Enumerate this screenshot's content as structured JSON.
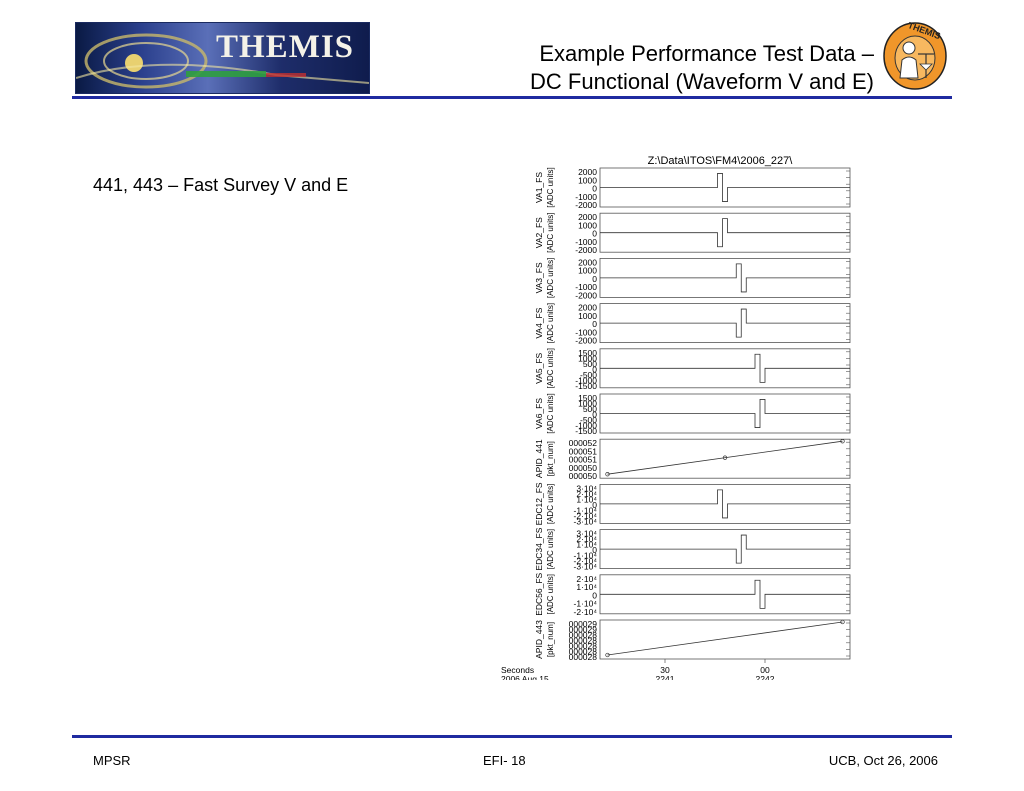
{
  "header": {
    "banner_text": "THEMIS",
    "title_line1": "Example Performance Test Data –",
    "title_line2": "DC Functional (Waveform V and E)",
    "logo_text": "THEMIS",
    "logo_icon": "themis-seal-icon"
  },
  "body": {
    "caption": "441, 443 – Fast Survey V and E"
  },
  "chart_data": {
    "type": "line",
    "title": "Z:\\Data\\ITOS\\FM4\\2006_227\\",
    "x_axis": {
      "label_line1": "Seconds",
      "label_line2": "2006 Aug 15",
      "ticks": [
        {
          "top": "30",
          "bottom": "2241"
        },
        {
          "top": "00",
          "bottom": "2242"
        }
      ]
    },
    "panels": [
      {
        "name": "VA1_FS",
        "unit": "[ADC units]",
        "ticks": [
          "2000",
          "1000",
          "0",
          "-1000",
          "-2000"
        ],
        "pulse_at": 0.47,
        "shape": "up-down"
      },
      {
        "name": "VA2_FS",
        "unit": "[ADC units]",
        "ticks": [
          "2000",
          "1000",
          "0",
          "-1000",
          "-2000"
        ],
        "pulse_at": 0.47,
        "shape": "down-up"
      },
      {
        "name": "VA3_FS",
        "unit": "[ADC units]",
        "ticks": [
          "2000",
          "1000",
          "0",
          "-1000",
          "-2000"
        ],
        "pulse_at": 0.545,
        "shape": "up-down"
      },
      {
        "name": "VA4_FS",
        "unit": "[ADC units]",
        "ticks": [
          "2000",
          "1000",
          "0",
          "-1000",
          "-2000"
        ],
        "pulse_at": 0.545,
        "shape": "down-up"
      },
      {
        "name": "VA5_FS",
        "unit": "[ADC units]",
        "ticks": [
          "1500",
          "1000",
          "500",
          "0",
          "-500",
          "-1000",
          "-1500"
        ],
        "pulse_at": 0.62,
        "shape": "up-down"
      },
      {
        "name": "VA6_FS",
        "unit": "[ADC units]",
        "ticks": [
          "1500",
          "1000",
          "500",
          "0",
          "-500",
          "-1000",
          "-1500"
        ],
        "pulse_at": 0.62,
        "shape": "down-up"
      },
      {
        "name": "APID_441",
        "unit": "[pkt_num]",
        "ticks": [
          "000052",
          "000051",
          "000051",
          "000050",
          "000050"
        ],
        "shape": "ramp",
        "points": [
          0.03,
          0.5,
          0.97
        ]
      },
      {
        "name": "EDC12_FS",
        "unit": "[ADC units]",
        "ticks": [
          "3·10⁴",
          "2·10⁴",
          "1·10⁴",
          "0",
          "-1·10⁴",
          "-2·10⁴",
          "-3·10⁴"
        ],
        "pulse_at": 0.47,
        "shape": "up-down"
      },
      {
        "name": "EDC34_FS",
        "unit": "[ADC units]",
        "ticks": [
          "3·10⁴",
          "2·10⁴",
          "1·10⁴",
          "0",
          "-1·10⁴",
          "-2·10⁴",
          "-3·10⁴"
        ],
        "pulse_at": 0.545,
        "shape": "down-up"
      },
      {
        "name": "EDC56_FS",
        "unit": "[ADC units]",
        "ticks": [
          "2·10⁴",
          "1·10⁴",
          "0",
          "-1·10⁴",
          "-2·10⁴"
        ],
        "pulse_at": 0.62,
        "shape": "up-down"
      },
      {
        "name": "APID_443",
        "unit": "[pkt_num]",
        "ticks": [
          "000029",
          "000029",
          "000028",
          "000028",
          "000028",
          "000028",
          "000028"
        ],
        "shape": "ramp",
        "points": [
          0.03,
          0.97
        ]
      }
    ]
  },
  "footer": {
    "left": "MPSR",
    "center": "EFI- 18",
    "right": "UCB, Oct 26, 2006"
  }
}
